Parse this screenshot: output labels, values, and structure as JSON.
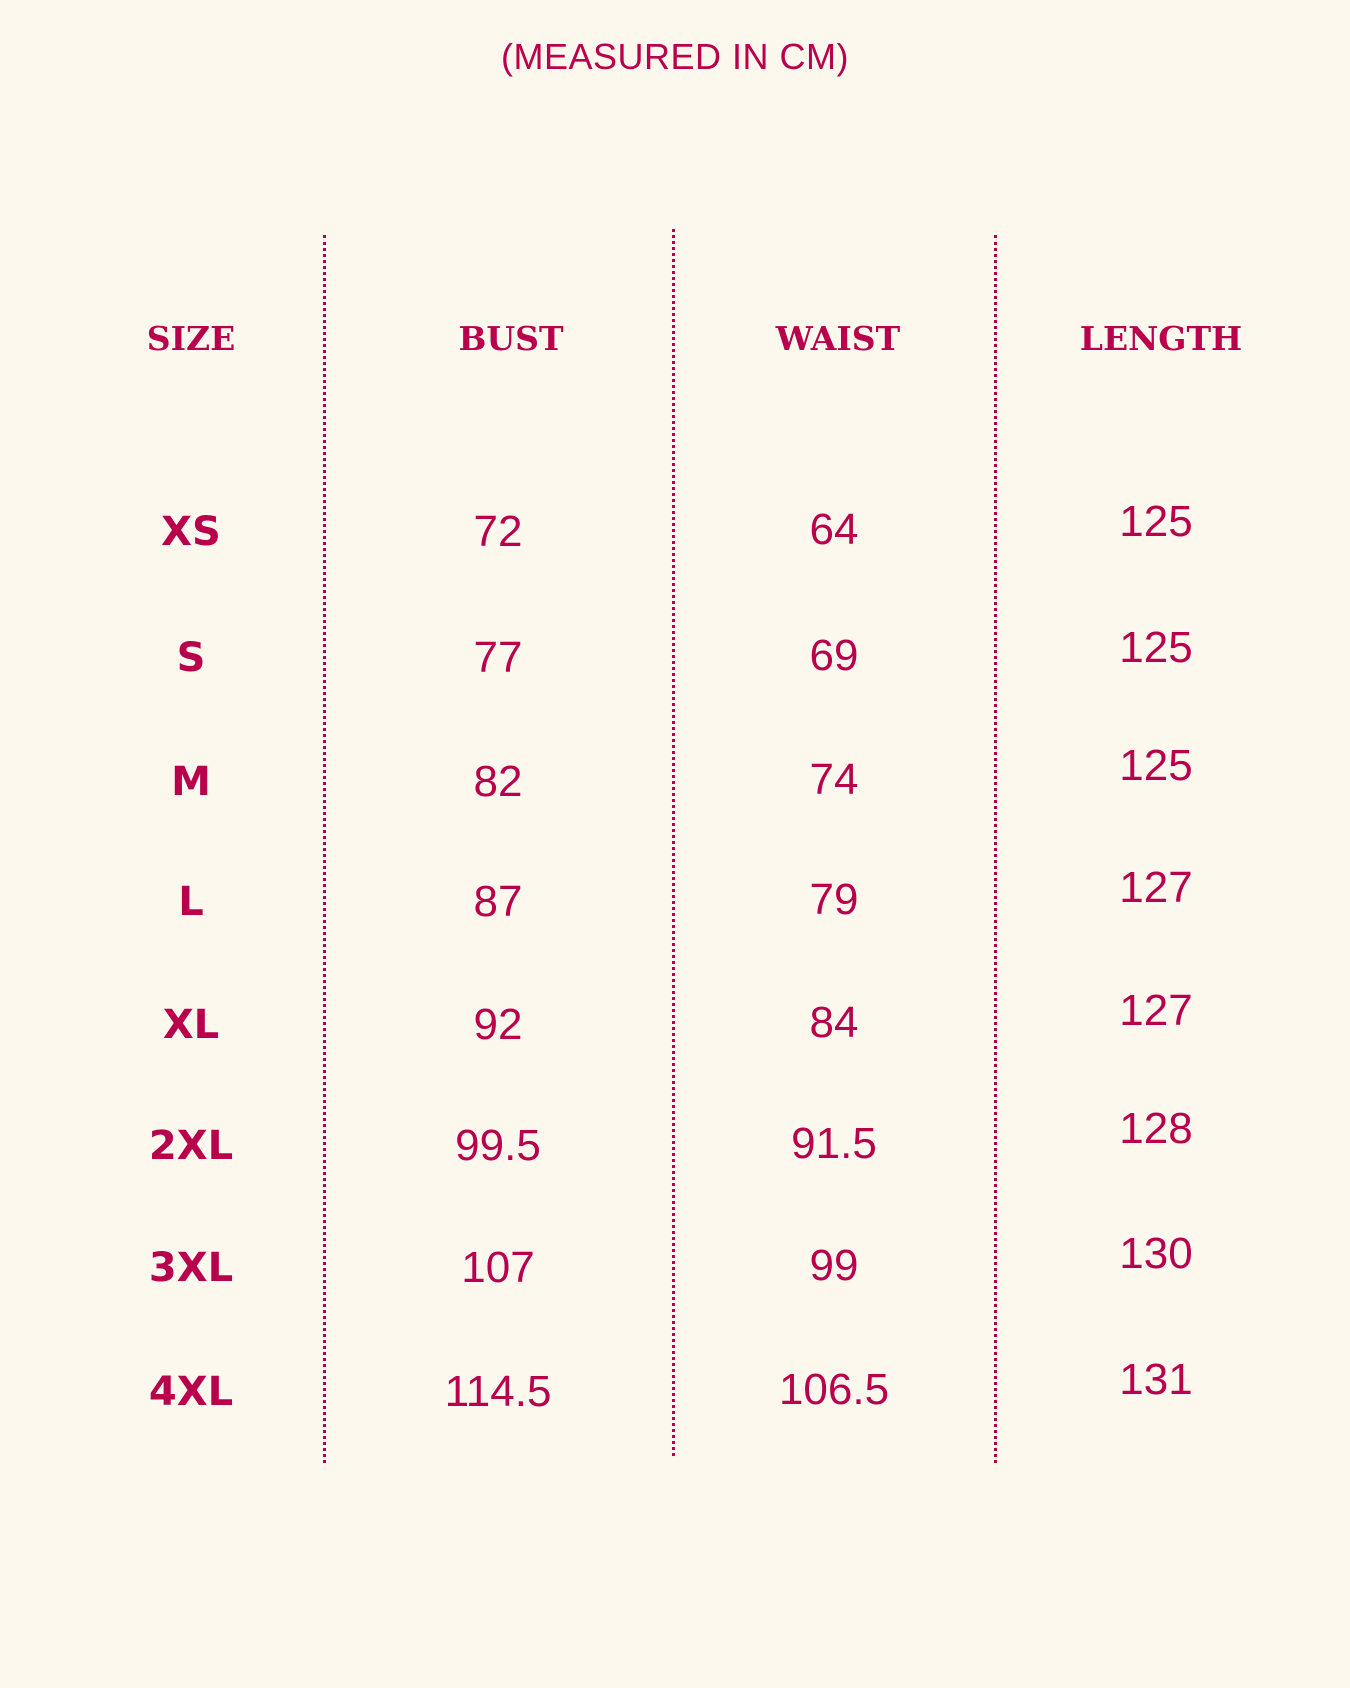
{
  "subtitle": "(MEASURED IN CM)",
  "accent_color": "#b8004c",
  "background_color": "#fdf8ee",
  "table": {
    "headers": [
      "SIZE",
      "BUST",
      "WAIST",
      "LENGTH"
    ],
    "rows": [
      {
        "size": "XS",
        "bust": "72",
        "waist": "64",
        "length": "125"
      },
      {
        "size": "S",
        "bust": "77",
        "waist": "69",
        "length": "125"
      },
      {
        "size": "M",
        "bust": "82",
        "waist": "74",
        "length": "125"
      },
      {
        "size": "L",
        "bust": "87",
        "waist": "79",
        "length": "127"
      },
      {
        "size": "XL",
        "bust": "92",
        "waist": "84",
        "length": "127"
      },
      {
        "size": "2XL",
        "bust": "99.5",
        "waist": "91.5",
        "length": "128"
      },
      {
        "size": "3XL",
        "bust": "107",
        "waist": "99",
        "length": "130"
      },
      {
        "size": "4XL",
        "bust": "114.5",
        "waist": "106.5",
        "length": "131"
      }
    ]
  }
}
